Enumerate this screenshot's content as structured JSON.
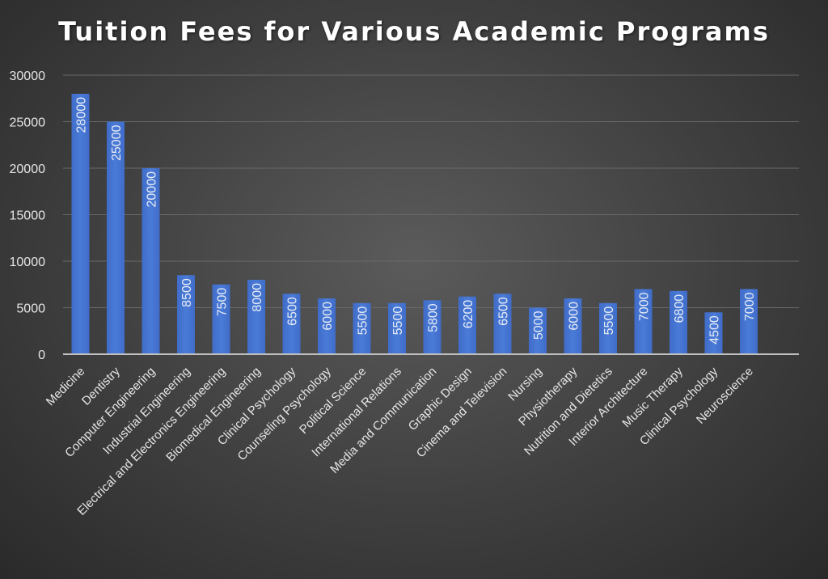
{
  "chart_data": {
    "type": "bar",
    "title": "Tuition Fees for Various Academic Programs",
    "xlabel": "",
    "ylabel": "",
    "ylim": [
      0,
      30000
    ],
    "yticks": [
      0,
      5000,
      10000,
      15000,
      20000,
      25000,
      30000
    ],
    "grid": true,
    "legend": "none",
    "bar_color": "#4a7bd8",
    "categories": [
      "Medicine",
      "Dentistry",
      "Computer Engineering",
      "Industrial Engineering",
      "Electrical and Electronics Engineering",
      "Biomedical Engineering",
      "Clinical Psychology",
      "Counseling Psychology",
      "Political Science",
      "International Relations",
      "Media and Communication",
      "Graphic Design",
      "Cinema and Television",
      "Nursing",
      "Physiotherapy",
      "Nutrition and Dietetics",
      "Interior Architecture",
      "Music Therapy",
      "Clinical Psychology",
      "Neuroscience"
    ],
    "values": [
      28000,
      25000,
      20000,
      8500,
      7500,
      8000,
      6500,
      6000,
      5500,
      5500,
      5800,
      6200,
      6500,
      5000,
      6000,
      5500,
      7000,
      6800,
      4500,
      7000
    ]
  }
}
